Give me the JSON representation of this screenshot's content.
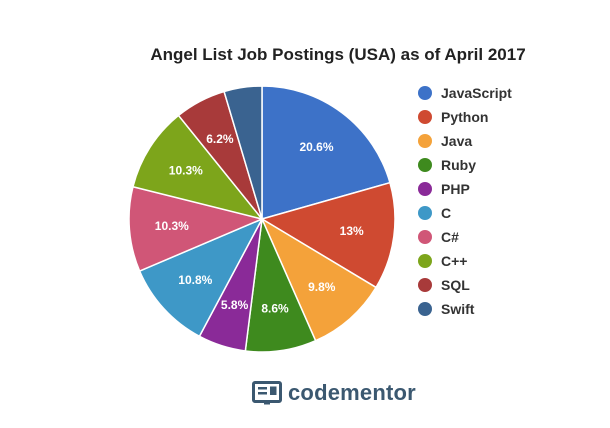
{
  "chart_data": {
    "type": "pie",
    "title": "Angel List Job Postings (USA) as of April 2017",
    "legend_position": "right",
    "slices": [
      {
        "name": "JavaScript",
        "value": 20.6,
        "label": "20.6%",
        "color": "#3d72c8"
      },
      {
        "name": "Python",
        "value": 13,
        "label": "13%",
        "color": "#cf4a31"
      },
      {
        "name": "Java",
        "value": 9.8,
        "label": "9.8%",
        "color": "#f4a23a"
      },
      {
        "name": "Ruby",
        "value": 8.6,
        "label": "8.6%",
        "color": "#3e8a1e"
      },
      {
        "name": "PHP",
        "value": 5.8,
        "label": "5.8%",
        "color": "#8a2a98"
      },
      {
        "name": "C",
        "value": 10.8,
        "label": "10.8%",
        "color": "#3e98c7"
      },
      {
        "name": "C#",
        "value": 10.3,
        "label": "10.3%",
        "color": "#d05677"
      },
      {
        "name": "C++",
        "value": 10.3,
        "label": "10.3%",
        "color": "#7da51b"
      },
      {
        "name": "SQL",
        "value": 6.2,
        "label": "6.2%",
        "color": "#a83a3a"
      },
      {
        "name": "Swift",
        "value": 4.6,
        "label": "",
        "color": "#3a6390"
      }
    ]
  },
  "logo": {
    "text": "codementor",
    "icon": "codementor-logo-icon",
    "color": "#3b5870"
  }
}
